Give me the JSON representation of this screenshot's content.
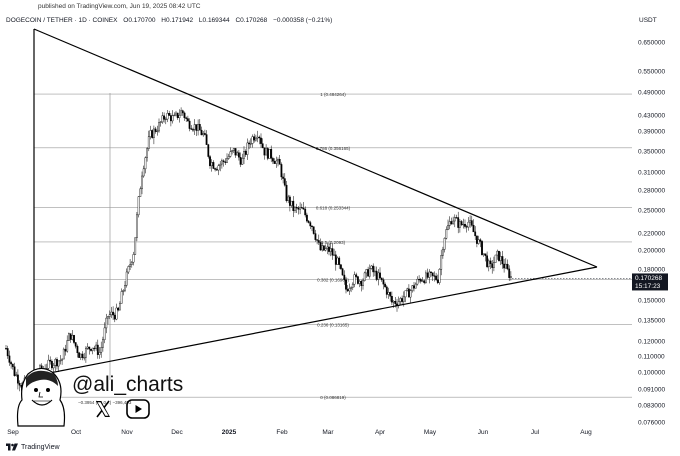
{
  "published": "published on TradingView.com, Jun 19, 2025 08:42 UTC",
  "header": {
    "symbol": "DOGECOIN / TETHER · 1D · COINEX",
    "open": "O0.170700",
    "high": "H0.171942",
    "low": "L0.169344",
    "close": "C0.170268",
    "change": "−0.000358 (−0.21%)"
  },
  "currency": "USDT",
  "y_ticks": [
    "0.650000",
    "0.550000",
    "0.490000",
    "0.430000",
    "0.390000",
    "0.350000",
    "0.310000",
    "0.280000",
    "0.250000",
    "0.220000",
    "0.200000",
    "0.180000",
    "0.150000",
    "0.135000",
    "0.120000",
    "0.110000",
    "0.100000",
    "0.091000",
    "0.083000",
    "0.076000"
  ],
  "x_ticks": [
    "Sep",
    "Oct",
    "Nov",
    "Dec",
    "2025",
    "Feb",
    "Mar",
    "Apr",
    "May",
    "Jun",
    "Jul",
    "Aug"
  ],
  "price_label": "0.170268",
  "countdown": "15:17:23",
  "fib_levels": [
    {
      "label": "1 (0.484264)",
      "price": 0.484264
    },
    {
      "label": "0.786 (0.356165)",
      "price": 0.356165
    },
    {
      "label": "0.618 (0.253344)",
      "price": 0.253344
    },
    {
      "label": "0.5 (0.2093)",
      "price": 0.2093
    },
    {
      "label": "0.382 (0.16908)",
      "price": 0.16908
    },
    {
      "label": "0.236 (0.13165)",
      "price": 0.13165
    },
    {
      "label": "0 (0.086819)",
      "price": 0.086819
    }
  ],
  "extension_label": "−0.3954 (−0.0...)  −396,493",
  "handle": "@ali_charts",
  "footer_brand": "TradingView",
  "colors": {
    "up": "#ffffff",
    "down": "#000000",
    "line": "#000000",
    "grid": "#b0b0b0",
    "price_tag": "#131722"
  },
  "icons": [
    "x-logo-icon",
    "youtube-icon",
    "tradingview-logo-icon",
    "avatar-caricature"
  ]
}
